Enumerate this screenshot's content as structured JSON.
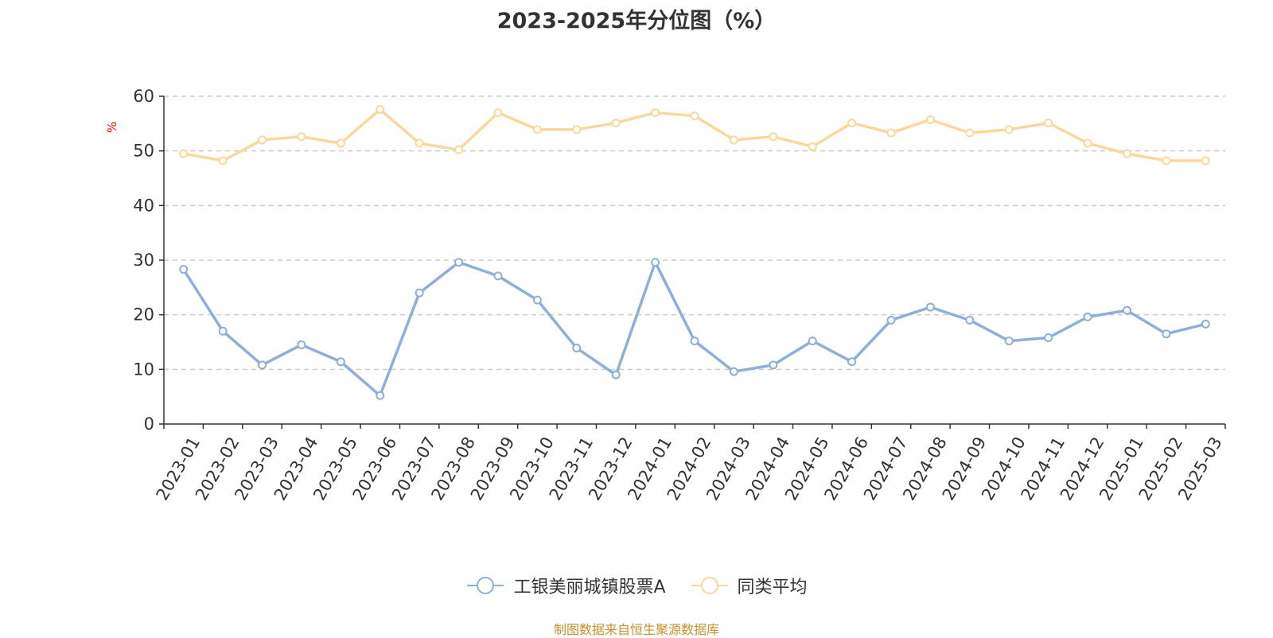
{
  "chart_data": {
    "type": "line",
    "title": "2023-2025年分位图（%）",
    "ylabel": "%",
    "xlabel": "",
    "ylim": [
      0,
      60
    ],
    "yticks": [
      0,
      10,
      20,
      30,
      40,
      50,
      60
    ],
    "grid": true,
    "legend_position": "bottom",
    "categories": [
      "2023-01",
      "2023-02",
      "2023-03",
      "2023-04",
      "2023-05",
      "2023-06",
      "2023-07",
      "2023-08",
      "2023-09",
      "2023-10",
      "2023-11",
      "2023-12",
      "2024-01",
      "2024-02",
      "2024-03",
      "2024-04",
      "2024-05",
      "2024-06",
      "2024-07",
      "2024-08",
      "2024-09",
      "2024-10",
      "2024-11",
      "2024-12",
      "2025-01",
      "2025-02",
      "2025-03"
    ],
    "series": [
      {
        "name": "工银美丽城镇股票A",
        "color": "#8eaedb",
        "values": [
          28.3,
          17.0,
          10.8,
          14.5,
          11.4,
          5.2,
          24.0,
          29.6,
          27.1,
          22.7,
          13.9,
          9.0,
          29.6,
          15.2,
          9.6,
          10.8,
          15.2,
          11.4,
          19.0,
          21.4,
          19.0,
          15.2,
          15.8,
          19.6,
          20.8,
          16.5,
          18.3
        ]
      },
      {
        "name": "同类平均",
        "color": "#fbd89a",
        "values": [
          49.5,
          48.2,
          52.0,
          52.6,
          51.4,
          57.6,
          51.4,
          50.2,
          57.0,
          53.9,
          53.9,
          55.1,
          57.0,
          56.4,
          52.0,
          52.6,
          50.8,
          55.1,
          53.3,
          55.7,
          53.3,
          53.9,
          55.1,
          51.4,
          49.5,
          48.2,
          48.2
        ]
      }
    ]
  },
  "source_text": "制图数据来自恒生聚源数据库"
}
